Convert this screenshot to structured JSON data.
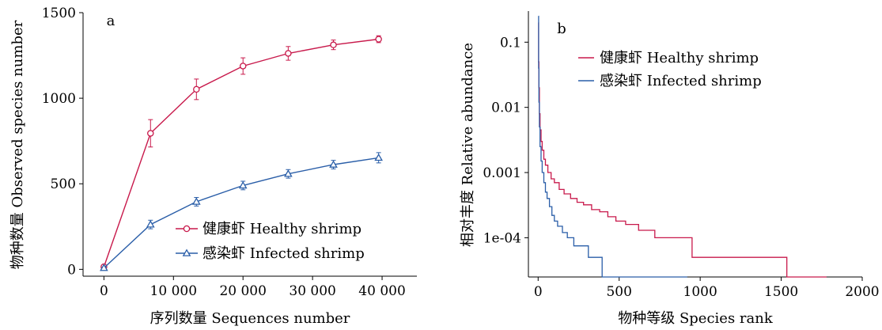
{
  "chart_data": [
    {
      "type": "line",
      "panel_label": "a",
      "xlabel": "序列数量 Sequences number",
      "ylabel": "物种数量 Observed species number",
      "xlim": [
        -3000,
        45000
      ],
      "ylim": [
        -40,
        1500
      ],
      "x_ticks": [
        0,
        10000,
        20000,
        30000,
        40000
      ],
      "x_tick_labels": [
        "0",
        "10 000",
        "20 000",
        "30 000",
        "40 000"
      ],
      "y_ticks": [
        0,
        500,
        1000,
        1500
      ],
      "y_tick_labels": [
        "0",
        "500",
        "1000",
        "1500"
      ],
      "legend_position": "lower-right",
      "error_bars": true,
      "series": [
        {
          "name": "健康虾 Healthy shrimp",
          "color": "#c8194b",
          "marker": "circle",
          "x": [
            0,
            6700,
            13300,
            20000,
            26500,
            33000,
            39500
          ],
          "y": [
            15,
            795,
            1052,
            1188,
            1262,
            1312,
            1345
          ],
          "err": [
            6,
            80,
            60,
            48,
            40,
            28,
            20
          ]
        },
        {
          "name": "感染虾 Infected shrimp",
          "color": "#2a5ea8",
          "marker": "triangle",
          "x": [
            0,
            6700,
            13300,
            20000,
            26500,
            33000,
            39500
          ],
          "y": [
            8,
            262,
            395,
            490,
            558,
            612,
            652
          ],
          "err": [
            4,
            25,
            25,
            25,
            25,
            25,
            30
          ]
        }
      ]
    },
    {
      "type": "line",
      "panel_label": "b",
      "xlabel": "物种等级 Species rank",
      "ylabel": "相对丰度 Relative abundance",
      "y_scale": "log",
      "xlim": [
        -60,
        2000
      ],
      "ylim": [
        2.5e-05,
        0.3
      ],
      "x_ticks": [
        0,
        500,
        1000,
        1500,
        2000
      ],
      "x_tick_labels": [
        "0",
        "500",
        "1000",
        "1500",
        "2000"
      ],
      "y_ticks": [
        0.1,
        0.01,
        0.001,
        0.0001
      ],
      "y_tick_labels": [
        "0.1",
        "0.01",
        "0.001",
        "1e-04"
      ],
      "legend_position": "top-right",
      "series": [
        {
          "name": "健康虾 Healthy shrimp",
          "color": "#c8194b",
          "x": [
            1,
            3,
            5,
            8,
            12,
            18,
            25,
            35,
            45,
            60,
            80,
            100,
            130,
            160,
            200,
            240,
            280,
            330,
            380,
            430,
            480,
            540,
            620,
            720,
            820,
            950,
            1100,
            1300,
            1520,
            1535,
            1780
          ],
          "y": [
            0.2,
            0.05,
            0.02,
            0.008,
            0.0045,
            0.003,
            0.0022,
            0.0016,
            0.0013,
            0.001,
            0.0008,
            0.0007,
            0.00055,
            0.00047,
            0.0004,
            0.00035,
            0.00032,
            0.00027,
            0.00025,
            0.00021,
            0.00018,
            0.00016,
            0.00013,
            0.0001,
            0.0001,
            5e-05,
            5e-05,
            5e-05,
            5e-05,
            2.5e-05,
            2.5e-05
          ]
        },
        {
          "name": "感染虾 Infected shrimp",
          "color": "#2a5ea8",
          "x": [
            1,
            3,
            5,
            8,
            12,
            18,
            25,
            35,
            45,
            55,
            70,
            85,
            100,
            120,
            150,
            180,
            220,
            260,
            310,
            380,
            395,
            920
          ],
          "y": [
            0.25,
            0.04,
            0.012,
            0.005,
            0.0025,
            0.0015,
            0.001,
            0.0007,
            0.0005,
            0.0004,
            0.0003,
            0.00022,
            0.00018,
            0.00015,
            0.00012,
            0.0001,
            7.5e-05,
            7.5e-05,
            5e-05,
            5e-05,
            2.5e-05,
            2.5e-05
          ]
        }
      ]
    }
  ]
}
